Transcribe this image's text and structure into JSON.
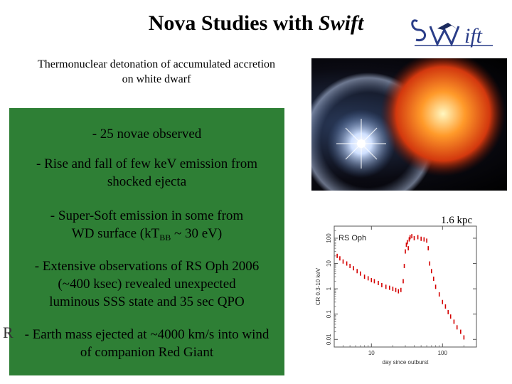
{
  "title": {
    "main": "Nova Studies with ",
    "emph": "Swift"
  },
  "logo": {
    "text": "Swift"
  },
  "subtitle": {
    "line1": "Thermonuclear detonation of accumulated accretion",
    "line2": "on white dwarf"
  },
  "bullets": {
    "b1": "- 25 novae observed",
    "b2_l1": "- Rise and fall of few keV emission from",
    "b2_l2": "shocked ejecta",
    "b3_l1": "-  Super-Soft emission in some from",
    "b3_l2a": "WD surface (kT",
    "b3_sub": "BB",
    "b3_l2b": " ~ 30 eV)",
    "b4_l1": "-  Extensive observations of RS Oph 2006",
    "b4_l2": "(~400 ksec) revealed unexpected",
    "b4_l3": "luminous SSS state and 35 sec QPO",
    "b5_l1": "- Earth mass ejected at ~4000 km/s into wind",
    "b5_l2": "of companion Red Giant"
  },
  "occluded_letter": "R",
  "distance_label": "1.6 kpc",
  "chart_data": {
    "type": "scatter",
    "title": "RS Oph",
    "xlabel": "day since outburst",
    "ylabel": "CR 0.3-10 keV",
    "xscale": "log",
    "yscale": "log",
    "xlim": [
      3,
      300
    ],
    "ylim": [
      0.005,
      300
    ],
    "xticks": [
      "10",
      "100"
    ],
    "yticks": [
      "0.01",
      "0.1",
      "1",
      "10",
      "100"
    ],
    "grid": false,
    "series": [
      {
        "color": "#d40000",
        "points": [
          [
            3.3,
            20
          ],
          [
            3.6,
            16
          ],
          [
            4.0,
            12
          ],
          [
            4.5,
            10
          ],
          [
            5,
            8
          ],
          [
            5.6,
            6.5
          ],
          [
            6.3,
            5
          ],
          [
            7,
            4
          ],
          [
            8,
            3
          ],
          [
            9,
            2.6
          ],
          [
            10,
            2.2
          ],
          [
            11,
            2
          ],
          [
            12.5,
            1.7
          ],
          [
            14,
            1.4
          ],
          [
            16,
            1.2
          ],
          [
            18,
            1.1
          ],
          [
            20,
            1.0
          ],
          [
            22,
            0.9
          ],
          [
            24,
            0.8
          ],
          [
            26,
            0.9
          ],
          [
            28,
            2
          ],
          [
            29,
            8
          ],
          [
            30,
            30
          ],
          [
            31,
            55
          ],
          [
            32,
            70
          ],
          [
            33,
            40
          ],
          [
            34,
            90
          ],
          [
            35,
            110
          ],
          [
            37,
            120
          ],
          [
            40,
            100
          ],
          [
            45,
            110
          ],
          [
            50,
            95
          ],
          [
            55,
            90
          ],
          [
            60,
            80
          ],
          [
            63,
            40
          ],
          [
            66,
            10
          ],
          [
            70,
            5
          ],
          [
            75,
            2.5
          ],
          [
            80,
            1.2
          ],
          [
            90,
            0.6
          ],
          [
            100,
            0.3
          ],
          [
            110,
            0.2
          ],
          [
            120,
            0.12
          ],
          [
            130,
            0.08
          ],
          [
            145,
            0.05
          ],
          [
            160,
            0.03
          ],
          [
            180,
            0.02
          ],
          [
            200,
            0.012
          ]
        ]
      }
    ]
  }
}
